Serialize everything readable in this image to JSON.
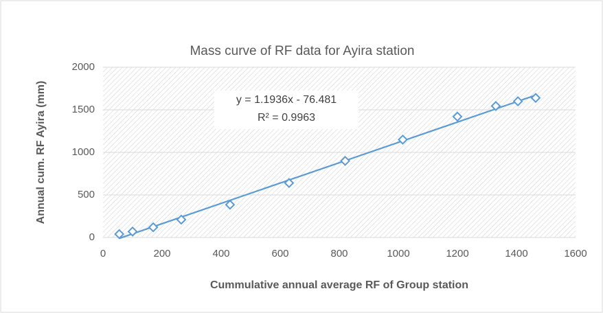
{
  "chart_data": {
    "type": "scatter",
    "title": "Mass curve of RF data for Ayira station",
    "x_label": "Cummulative annual average RF of Group station",
    "y_label": "Annual cum. RF Ayira (mm)",
    "x": [
      55,
      100,
      170,
      265,
      430,
      630,
      820,
      1015,
      1200,
      1330,
      1405,
      1465
    ],
    "series": [
      {
        "name": "Ayira",
        "color": "#5b9bd5",
        "values": [
          40,
          70,
          120,
          210,
          385,
          640,
          900,
          1150,
          1420,
          1545,
          1600,
          1640
        ]
      }
    ],
    "trendline": {
      "slope": 1.1936,
      "intercept": -76.481,
      "equation": "y = 1.1936x - 76.481",
      "r_squared": "R² = 0.9963"
    },
    "xlim": [
      0,
      1600
    ],
    "xticks": [
      0,
      200,
      400,
      600,
      800,
      1000,
      1200,
      1400,
      1600
    ],
    "ylim": [
      0,
      2000
    ],
    "yticks": [
      0,
      500,
      1000,
      1500,
      2000
    ],
    "grid": true
  }
}
